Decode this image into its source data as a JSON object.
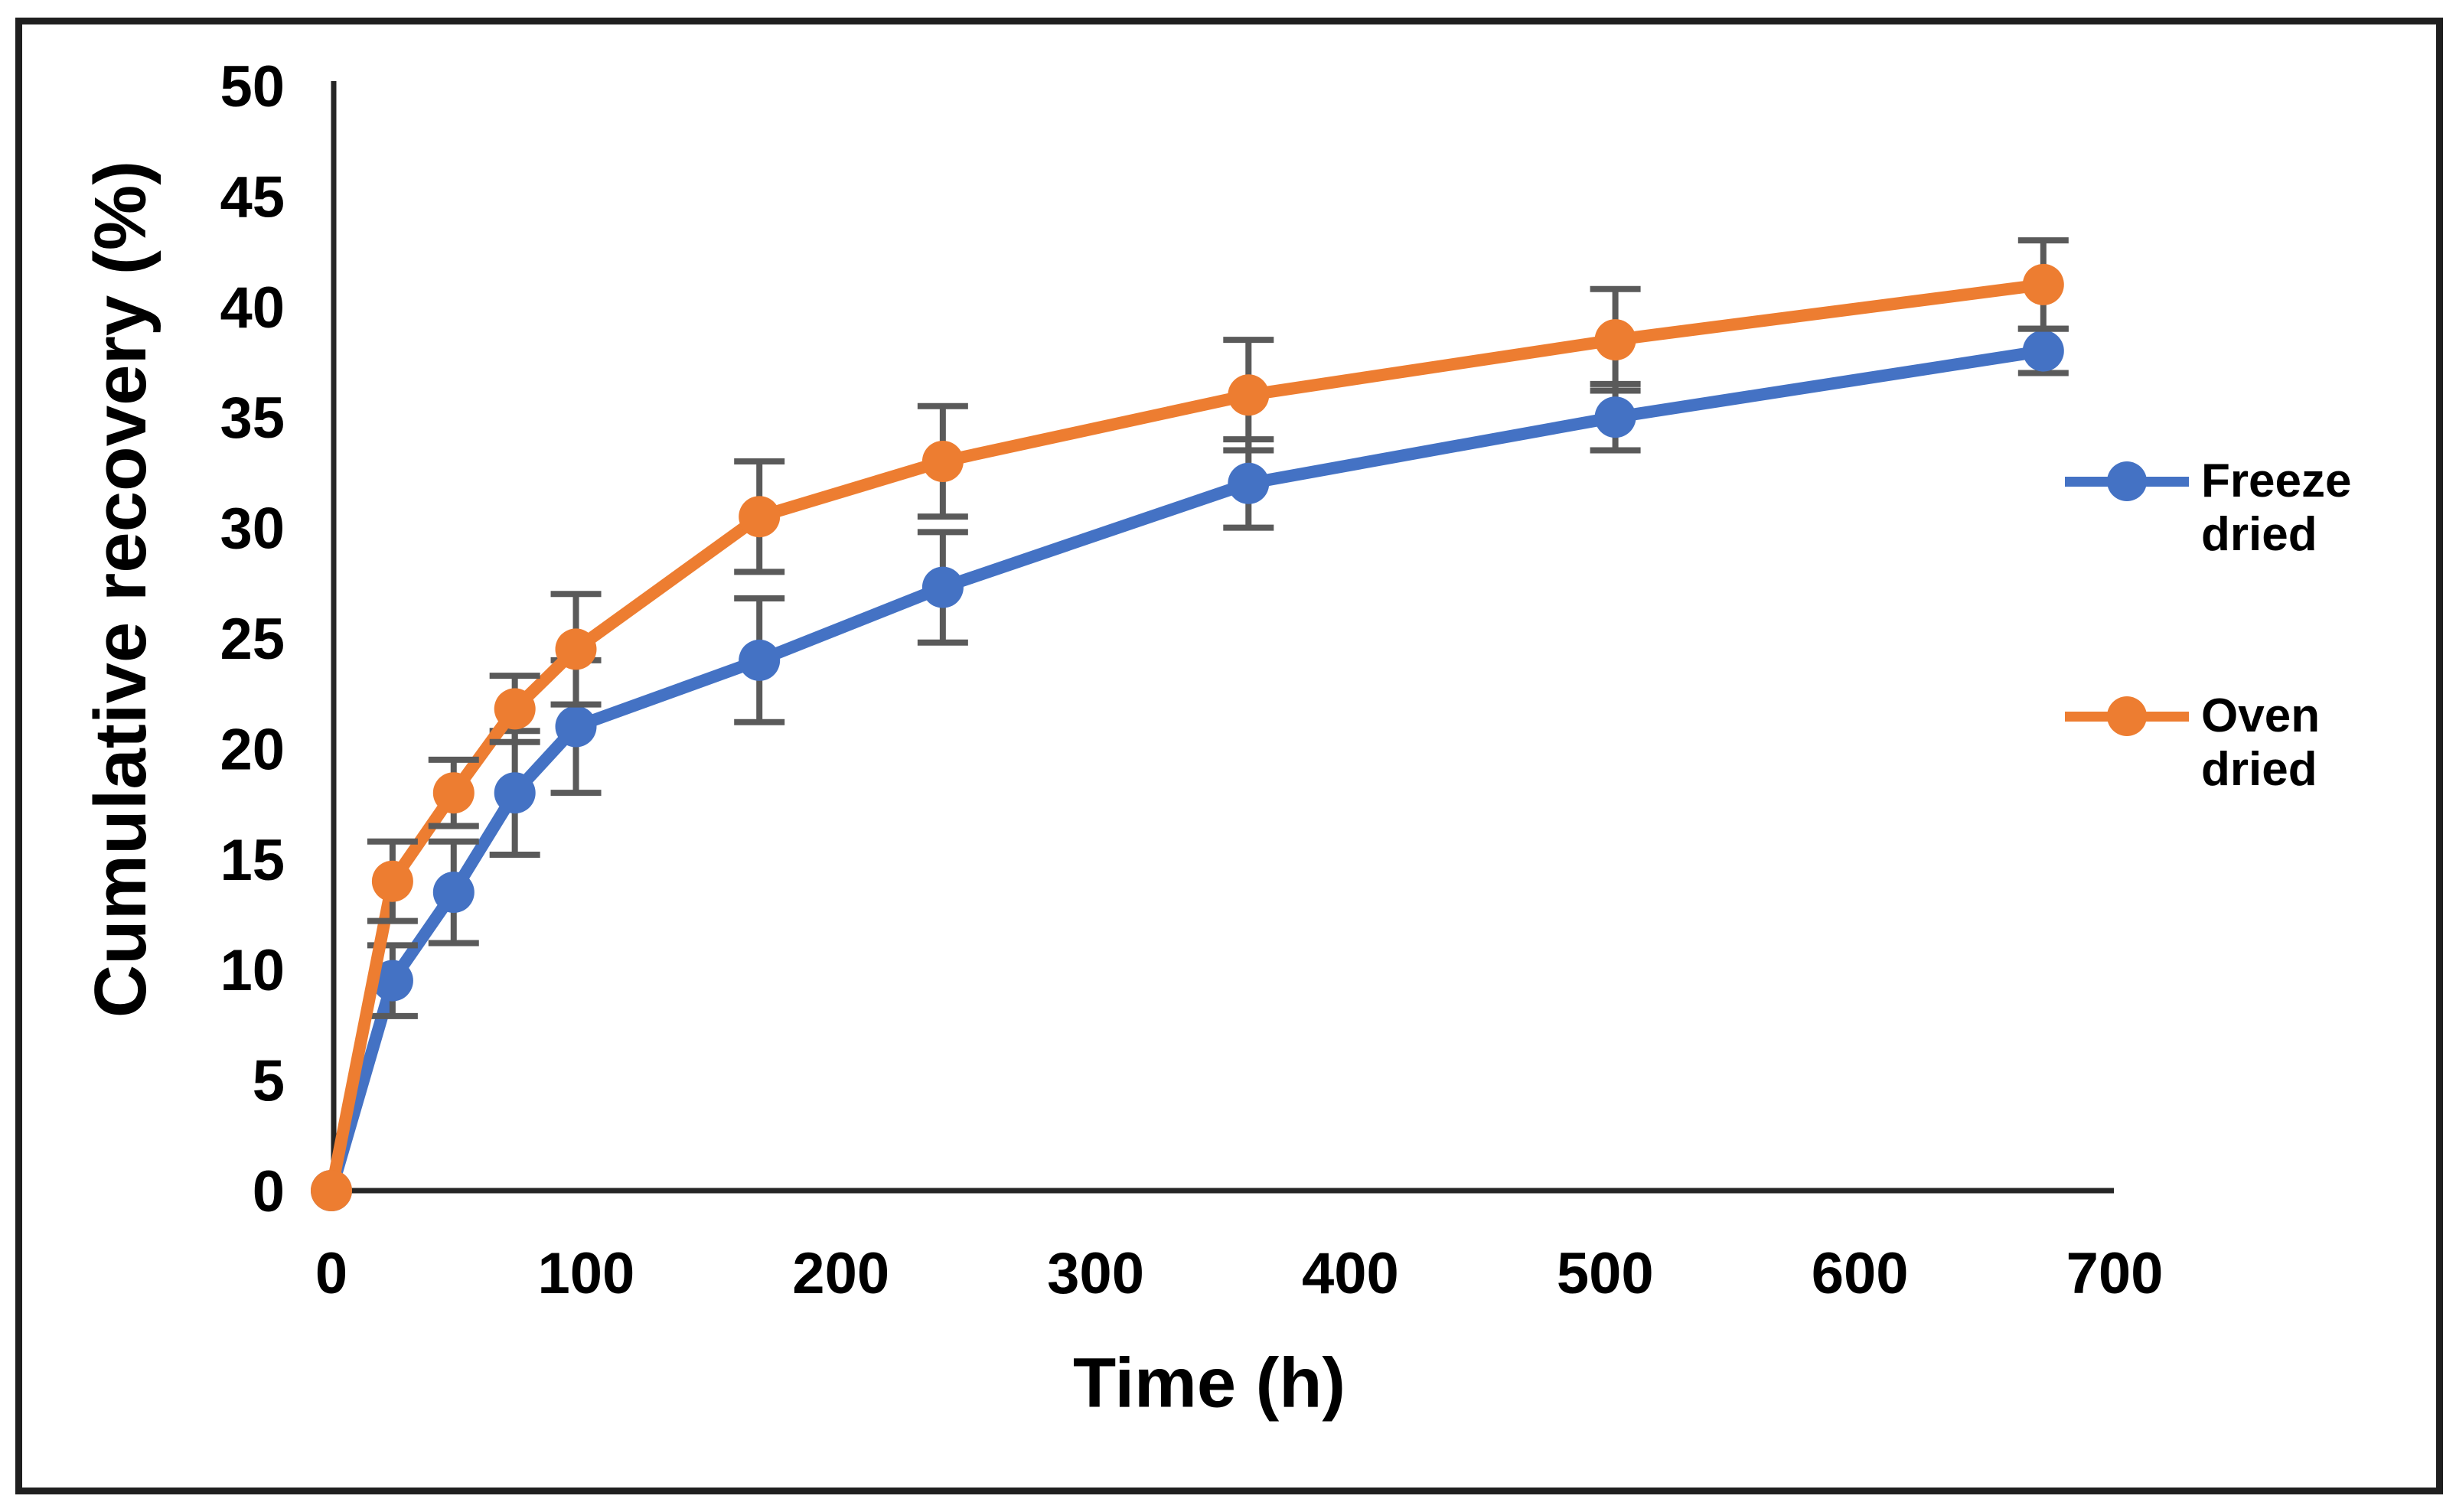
{
  "chart_data": {
    "type": "line",
    "title": "",
    "xlabel": "Time (h)",
    "ylabel": "Cumulative recovery (%)",
    "x": [
      0,
      24,
      48,
      72,
      96,
      168,
      240,
      360,
      504,
      672
    ],
    "x_ticks": [
      0,
      100,
      200,
      300,
      400,
      500,
      600,
      700
    ],
    "y_ticks": [
      0,
      5,
      10,
      15,
      20,
      25,
      30,
      35,
      40,
      45,
      50
    ],
    "xlim": [
      0,
      700
    ],
    "ylim": [
      0,
      50
    ],
    "grid": false,
    "legend_position": "right-middle",
    "axis_color": "#262626",
    "text_color": "#000000",
    "error_bar_color": "#5a5a5a",
    "series": [
      {
        "name": "Freeze dried",
        "legend_lines": [
          "Freeze",
          "dried"
        ],
        "color": "#4472C4",
        "values": [
          0,
          9.5,
          13.5,
          18,
          21,
          24,
          27.3,
          32,
          35,
          38
        ],
        "errors": [
          0,
          1.6,
          2.3,
          2.8,
          3.0,
          2.8,
          2.5,
          2.0,
          1.5,
          1.0
        ]
      },
      {
        "name": "Oven dried",
        "legend_lines": [
          "Oven",
          "dried"
        ],
        "color": "#ED7D31",
        "values": [
          0,
          14,
          18,
          21.8,
          24.5,
          30.5,
          33,
          36,
          38.5,
          41
        ],
        "errors": [
          0,
          1.8,
          1.5,
          1.5,
          2.5,
          2.5,
          2.5,
          2.5,
          2.3,
          2.0
        ]
      }
    ]
  }
}
